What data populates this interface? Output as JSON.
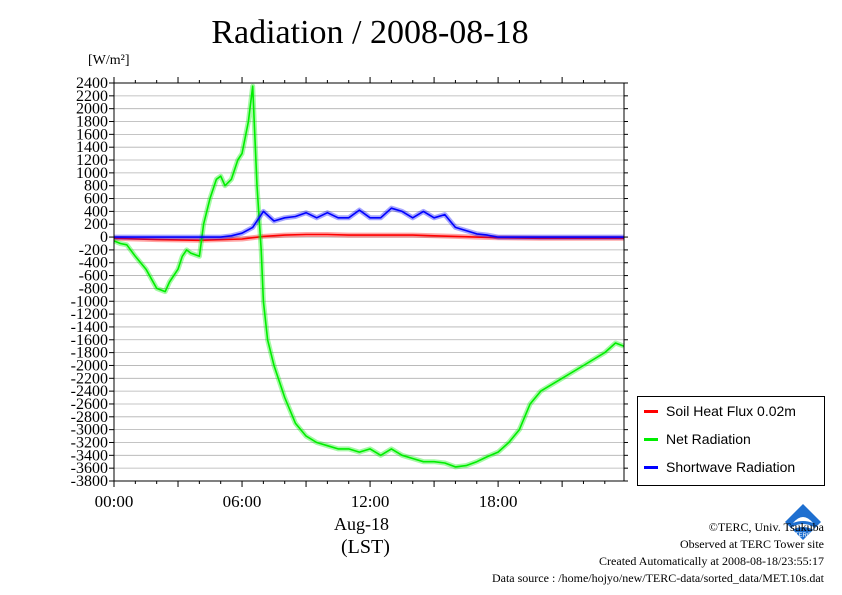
{
  "chart_data": {
    "type": "line",
    "title": "Radiation / 2008-08-18",
    "ylabel_unit": "[W/m²]",
    "xlabel": "(LST)",
    "date_label": "Aug-18",
    "xlim": [
      0,
      23.9
    ],
    "ylim": [
      -3800,
      2400
    ],
    "y_ticks": [
      2400,
      2200,
      2000,
      1800,
      1600,
      1400,
      1200,
      1000,
      800,
      600,
      400,
      200,
      0,
      -200,
      -400,
      -600,
      -800,
      -1000,
      -1200,
      -1400,
      -1600,
      -1800,
      -2000,
      -2200,
      -2400,
      -2600,
      -2800,
      -3000,
      -3200,
      -3400,
      -3600,
      -3800
    ],
    "x_ticks": [
      {
        "value": 0,
        "label": "00:00"
      },
      {
        "value": 6,
        "label": "06:00"
      },
      {
        "value": 12,
        "label": "12:00"
      },
      {
        "value": 18,
        "label": "18:00"
      }
    ],
    "grid": true,
    "legend_position": "bottom-right",
    "series": [
      {
        "name": "Soil Heat Flux 0.02m",
        "color": "#ff0000",
        "x": [
          0,
          2,
          4,
          6,
          7,
          8,
          9,
          10,
          11,
          12,
          13,
          14,
          15,
          16,
          17,
          18,
          20,
          22,
          23.9
        ],
        "y": [
          -20,
          -40,
          -50,
          -30,
          10,
          30,
          40,
          40,
          30,
          30,
          30,
          30,
          20,
          10,
          0,
          -10,
          -20,
          -20,
          -20
        ]
      },
      {
        "name": "Net Radiation",
        "color": "#00ee00",
        "x": [
          0,
          0.3,
          0.6,
          1,
          1.5,
          2,
          2.4,
          2.6,
          3,
          3.2,
          3.4,
          3.6,
          4,
          4.2,
          4.5,
          4.8,
          5,
          5.2,
          5.5,
          5.8,
          6,
          6.3,
          6.5,
          6.7,
          6.9,
          7,
          7.2,
          7.5,
          8,
          8.5,
          9,
          9.5,
          10,
          10.5,
          11,
          11.5,
          12,
          12.5,
          13,
          13.5,
          14,
          14.5,
          15,
          15.5,
          16,
          16.5,
          17,
          17.5,
          18,
          18.5,
          19,
          19.5,
          20,
          21,
          22,
          23,
          23.5,
          23.9
        ],
        "y": [
          -60,
          -100,
          -120,
          -300,
          -500,
          -800,
          -850,
          -700,
          -500,
          -300,
          -200,
          -250,
          -300,
          200,
          600,
          900,
          950,
          800,
          900,
          1200,
          1300,
          1800,
          2350,
          800,
          -200,
          -1000,
          -1600,
          -2000,
          -2500,
          -2900,
          -3100,
          -3200,
          -3250,
          -3300,
          -3300,
          -3350,
          -3300,
          -3400,
          -3300,
          -3400,
          -3450,
          -3500,
          -3500,
          -3520,
          -3580,
          -3560,
          -3500,
          -3420,
          -3350,
          -3200,
          -3000,
          -2600,
          -2400,
          -2200,
          -2000,
          -1800,
          -1650,
          -1700
        ]
      },
      {
        "name": "Shortwave Radiation",
        "color": "#0000ff",
        "x": [
          0,
          3,
          5,
          5.5,
          6,
          6.5,
          7,
          7.5,
          8,
          8.5,
          9,
          9.5,
          10,
          10.5,
          11,
          11.5,
          12,
          12.5,
          13,
          13.5,
          14,
          14.5,
          15,
          15.5,
          16,
          16.5,
          17,
          17.5,
          18,
          20,
          22,
          23.9
        ],
        "y": [
          0,
          0,
          0,
          20,
          60,
          150,
          400,
          250,
          300,
          320,
          380,
          300,
          380,
          300,
          300,
          420,
          300,
          300,
          450,
          400,
          300,
          400,
          300,
          350,
          150,
          100,
          50,
          30,
          0,
          0,
          0,
          0
        ]
      }
    ]
  },
  "credits": {
    "copyright": "©TERC, Univ. Tsukuba",
    "observed": "Observed at TERC Tower site",
    "created": "Created Automatically at 2008-08-18/23:55:17",
    "source": "Data source : /home/hojyo/new/TERC-data/sorted_data/MET.10s.dat"
  },
  "logo": {
    "text": "TERC"
  }
}
